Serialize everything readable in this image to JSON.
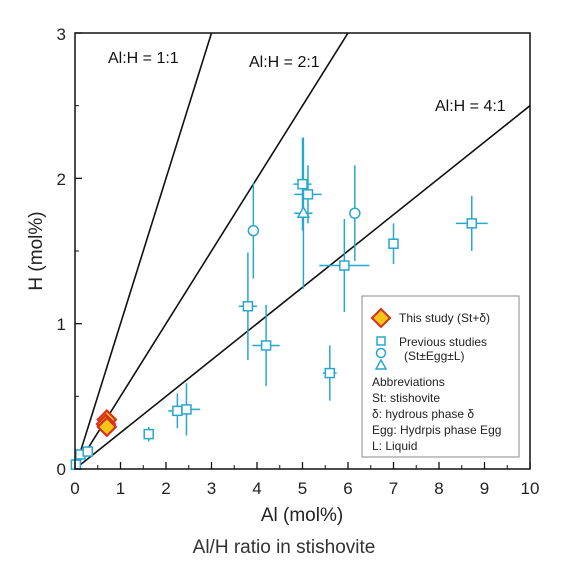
{
  "chart_data": {
    "type": "scatter",
    "title": "",
    "xlabel": "Al (mol%)",
    "ylabel": "H (mol%)",
    "caption": "Al/H ratio in stishovite",
    "xlim": [
      0,
      10
    ],
    "ylim": [
      0,
      3
    ],
    "xticks": [
      "0",
      "1",
      "2",
      "3",
      "4",
      "5",
      "6",
      "7",
      "8",
      "9",
      "10"
    ],
    "yticks": [
      "0",
      "1",
      "2",
      "3"
    ],
    "grid": false,
    "colors": {
      "previous": "#27a7cf",
      "this_study_fill": "#f5c518",
      "this_study_edge": "#d7301f",
      "lines": "#111111"
    },
    "ratio_lines": [
      {
        "label": "Al:H = 1:1",
        "slope": 1
      },
      {
        "label": "Al:H = 2:1",
        "slope": 0.5
      },
      {
        "label": "Al:H = 4:1",
        "slope": 0.25
      }
    ],
    "series": [
      {
        "name": "This study (St+δ)",
        "marker": "diamond",
        "points": [
          {
            "x": 0.7,
            "y": 0.34
          },
          {
            "x": 0.68,
            "y": 0.31
          },
          {
            "x": 0.7,
            "y": 0.29
          }
        ]
      },
      {
        "name": "Previous studies (St±Egg±L) – square",
        "marker": "square",
        "points": [
          {
            "x": 0.02,
            "y": 0.03,
            "xerr": 0.05,
            "yerr": 0.02
          },
          {
            "x": 0.12,
            "y": 0.1,
            "xerr": 0.05,
            "yerr": 0.02
          },
          {
            "x": 0.28,
            "y": 0.12,
            "xerr": 0.05,
            "yerr": 0.03
          },
          {
            "x": 1.62,
            "y": 0.24,
            "xerr": 0.1,
            "yerr": 0.05
          },
          {
            "x": 2.25,
            "y": 0.4,
            "xerr": 0.2,
            "yerr": 0.12
          },
          {
            "x": 2.45,
            "y": 0.41,
            "xerr": 0.3,
            "yerr": 0.18
          },
          {
            "x": 3.8,
            "y": 1.12,
            "xerr": 0.2,
            "yerr": 0.37
          },
          {
            "x": 4.2,
            "y": 0.85,
            "xerr": 0.3,
            "yerr": 0.28
          },
          {
            "x": 5.0,
            "y": 1.96,
            "xerr": 0.2,
            "yerr": 0.32
          },
          {
            "x": 5.12,
            "y": 1.89,
            "xerr": 0.3,
            "yerr": 0.2
          },
          {
            "x": 5.92,
            "y": 1.4,
            "xerr": 0.55,
            "yerr": 0.32
          },
          {
            "x": 5.6,
            "y": 0.66,
            "xerr": 0.15,
            "yerr": 0.19
          },
          {
            "x": 7.0,
            "y": 1.55,
            "xerr": 0.1,
            "yerr": 0.14
          },
          {
            "x": 8.72,
            "y": 1.69,
            "xerr": 0.35,
            "yerr": 0.19
          }
        ]
      },
      {
        "name": "Previous studies (St±Egg±L) – circle",
        "marker": "circle",
        "points": [
          {
            "x": 3.92,
            "y": 1.64,
            "xerr": 0.05,
            "yerr": 0.33
          },
          {
            "x": 6.15,
            "y": 1.76,
            "xerr": 0.1,
            "yerr": 0.33
          }
        ]
      },
      {
        "name": "Previous studies (St±Egg±L) – triangle",
        "marker": "triangle",
        "points": [
          {
            "x": 5.02,
            "y": 1.76,
            "xerr": 0.2,
            "yerr": 0.52
          }
        ]
      }
    ],
    "legend": {
      "position": "lower-right",
      "entries": [
        "This study (St+δ)",
        "Previous studies",
        "(St±Egg±L)",
        "Abbreviations",
        "St: stishovite",
        "δ: hydrous phase δ",
        "Egg: Hydrpis phase Egg",
        "L: Liquid"
      ]
    }
  }
}
